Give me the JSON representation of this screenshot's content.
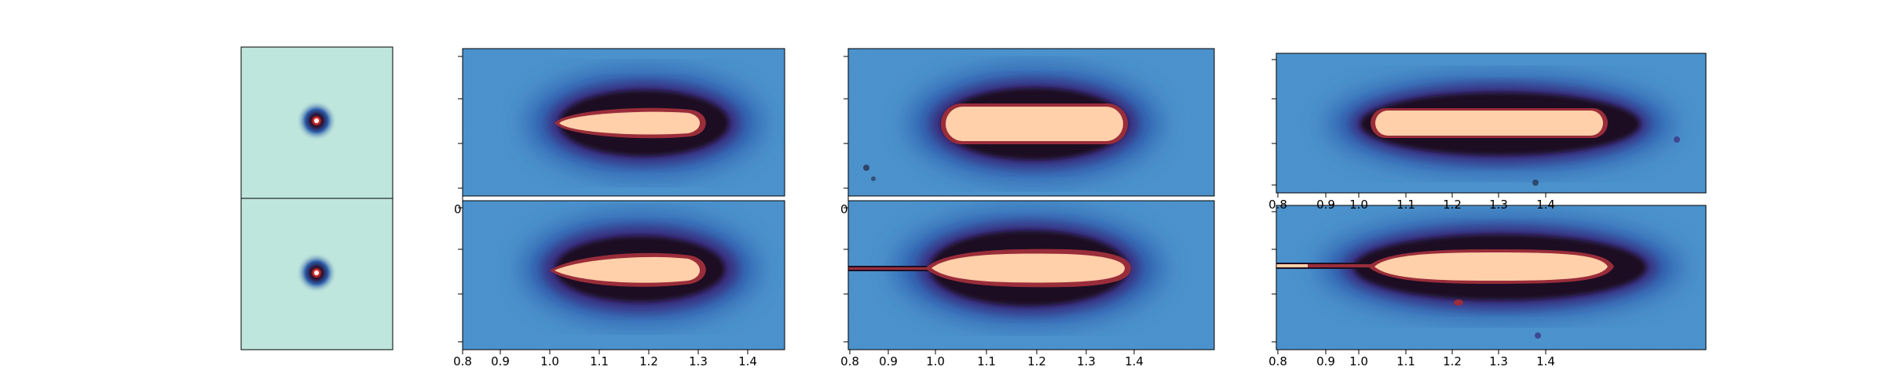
{
  "figure": {
    "colors": {
      "page_bg": "#ffffff",
      "frame": "#000000",
      "psf_bg": "#bfe6dc",
      "image_bg": "#4a92cc",
      "core_fill": "#ffd0aa",
      "halo_dark": "#1b1024",
      "halo_red": "#9a2d3a",
      "halo_purple": "#3b2a7a",
      "halo_blue": "#2d5fae"
    },
    "psf_panels": [
      {
        "id": "psf-top",
        "feature": "point-source-psf"
      },
      {
        "id": "psf-bottom",
        "feature": "point-source-psf"
      }
    ],
    "image_panels": [
      {
        "id": "col1-top",
        "shape": "tapered-ellipse",
        "xticklabels": [],
        "partial_tick": "0"
      },
      {
        "id": "col1-bottom",
        "shape": "tapered-ellipse",
        "xticklabels": [
          "0.8",
          "0.9",
          "1.0",
          "1.1",
          "1.2",
          "1.3",
          "1.4"
        ]
      },
      {
        "id": "col2-top",
        "shape": "ellipse",
        "xticklabels": [],
        "partial_tick": "0"
      },
      {
        "id": "col2-bottom",
        "shape": "ellipse-with-jet",
        "xticklabels": [
          "0.8",
          "0.9",
          "1.0",
          "1.1",
          "1.2",
          "1.3",
          "1.4"
        ]
      },
      {
        "id": "col3-top",
        "shape": "elongated-ellipse",
        "xticklabels": [
          "0.8",
          "0.9",
          "1.0",
          "1.1",
          "1.2",
          "1.3",
          "1.4"
        ]
      },
      {
        "id": "col3-bottom",
        "shape": "elongated-ellipse-with-jet",
        "xticklabels": [
          "0.8",
          "0.9",
          "1.0",
          "1.1",
          "1.2",
          "1.3",
          "1.4"
        ]
      }
    ]
  }
}
